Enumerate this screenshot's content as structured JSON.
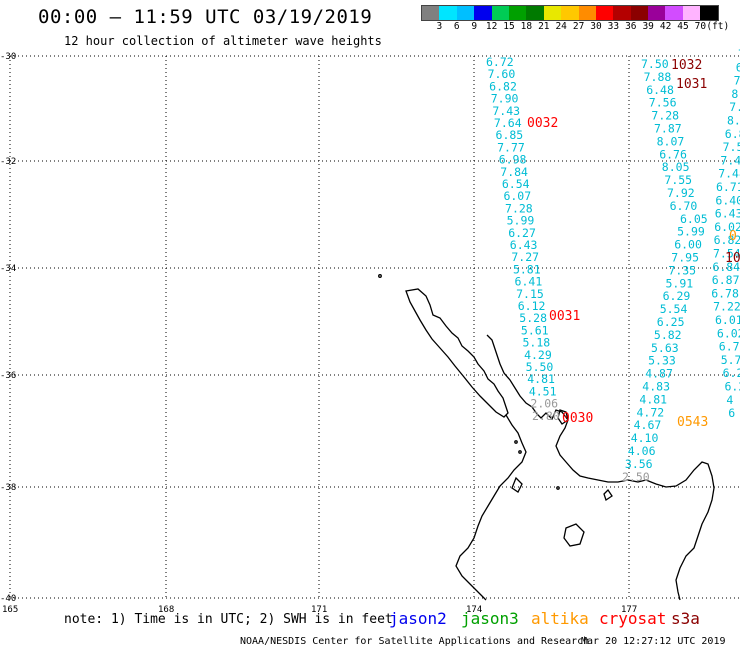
{
  "title": "00:00 – 11:59 UTC 03/19/2019",
  "subtitle": "12 hour collection of altimeter wave heights",
  "colorbar": {
    "colors": [
      "#808080",
      "#00e5ff",
      "#00bfff",
      "#0000ee",
      "#00cc55",
      "#00a000",
      "#007a00",
      "#e8e800",
      "#ffc800",
      "#ff8c00",
      "#ff0000",
      "#b40000",
      "#8b0000",
      "#9a009a",
      "#d24cff",
      "#ffb4ff",
      "#000000"
    ],
    "labels": [
      "3",
      "6",
      "9",
      "12",
      "15",
      "18",
      "21",
      "24",
      "27",
      "30",
      "33",
      "36",
      "39",
      "42",
      "45",
      "70",
      "(ft)"
    ]
  },
  "axes": {
    "lat_labels": [
      "-30",
      "-32",
      "-34",
      "-36",
      "-38",
      "-40"
    ],
    "lon_labels": [
      "165",
      "168",
      "171",
      "174",
      "177"
    ]
  },
  "tracks": [
    {
      "name": "jason3-track-a",
      "color": "#00bcd4",
      "values": [
        "6.72",
        "7.60",
        "6.82",
        "7.90",
        "7.43",
        "7.64",
        "6.85",
        "7.77",
        "6.98",
        "7.84",
        "6.54",
        "6.07",
        "7.28",
        "5.99",
        "6.27",
        "6.43",
        "7.27",
        "5.81",
        "6.41",
        "7.15",
        "6.12",
        "5.28",
        "5.61",
        "5.18",
        "4.29",
        "5.50",
        "4.81",
        "4.51",
        "2.06",
        "2.80"
      ]
    },
    {
      "name": "jason3-track-b",
      "color": "#00bcd4",
      "values": [
        "7.50",
        "7.88",
        "6.48",
        "7.56",
        "7.28",
        "7.87",
        "8.07",
        "6.76",
        "8.05",
        "7.55",
        "7.92",
        "6.70",
        "6.05",
        "5.99",
        "6.00",
        "7.95",
        "7.35",
        "5.91",
        "6.29",
        "5.54",
        "6.25",
        "5.82",
        "5.63",
        "5.33",
        "4.87",
        "4.83",
        "4.81",
        "4.72",
        "4.67",
        "4.10",
        "4.06",
        "3.56",
        "2.50"
      ]
    },
    {
      "name": "jason3-track-c",
      "color": "#00bcd4",
      "values": [
        "7.9",
        "6.",
        "7",
        "8.",
        "7.8",
        "8.",
        "6.88",
        "7.57",
        "7.43",
        "7.48",
        "6.71",
        "6.40",
        "6.43",
        "6.02",
        "6.82",
        "7.54",
        "6.84",
        "6.87",
        "6.78",
        "7.22",
        "6.01",
        "6.02",
        "6.74",
        "5.78",
        "6.2",
        "6.2",
        "4",
        "6"
      ]
    }
  ],
  "time_labels": [
    {
      "text": "1032",
      "color": "#8b0000"
    },
    {
      "text": "1031",
      "color": "#8b0000"
    },
    {
      "text": "0032",
      "color": "#ff0000"
    },
    {
      "text": "0031",
      "color": "#ff0000"
    },
    {
      "text": "0030",
      "color": "#ff0000"
    },
    {
      "text": "0543",
      "color": "#ff9900"
    },
    {
      "text": "0",
      "color": "#ff9900"
    },
    {
      "text": "10",
      "color": "#8b0000"
    }
  ],
  "note": "note: 1) Time is in UTC; 2) SWH is in feet",
  "legend": [
    {
      "label": "jason2",
      "color": "#0000ee"
    },
    {
      "label": "jason3",
      "color": "#00a000"
    },
    {
      "label": "altika",
      "color": "#ff9900"
    },
    {
      "label": "cryosat",
      "color": "#ff0000"
    },
    {
      "label": "s3a",
      "color": "#8b0000"
    }
  ],
  "footer": "NOAA/NESDIS Center for Satellite Applications and Research",
  "footer_time": "Mar 20 12:27:12 UTC 2019"
}
